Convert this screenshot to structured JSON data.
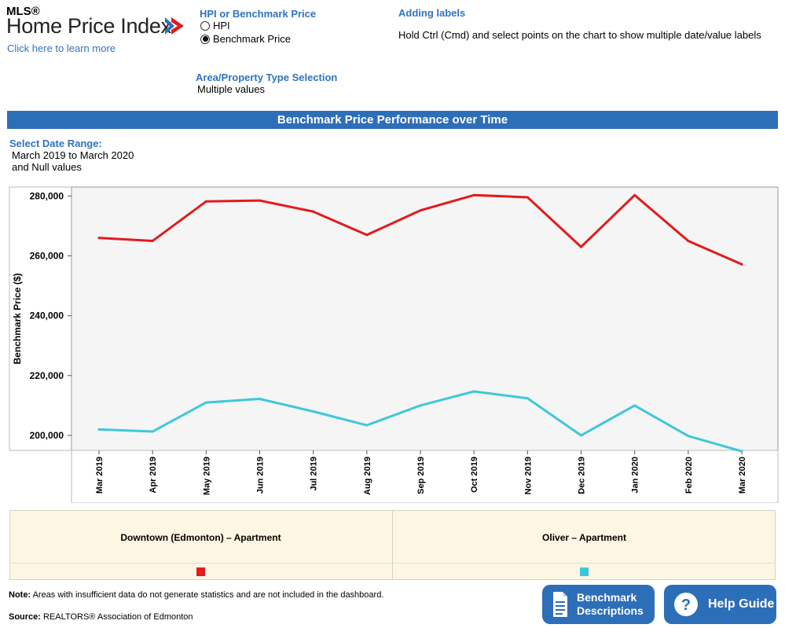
{
  "logo": {
    "mls": "MLS®",
    "name": "Home Price Index",
    "learn_more": "Click here to learn more"
  },
  "measure": {
    "label": "HPI or Benchmark Price",
    "options": [
      "HPI",
      "Benchmark Price"
    ],
    "selected": "Benchmark Price"
  },
  "labels_help": {
    "title": "Adding labels",
    "text": "Hold Ctrl (Cmd) and select points on the chart to show multiple date/value labels"
  },
  "area_selection": {
    "label": "Area/Property Type Selection",
    "value": "Multiple values"
  },
  "title_bar": "Benchmark Price Performance over Time",
  "date_range": {
    "label": "Select Date Range:",
    "line1": "March 2019 to March 2020",
    "line2": "and Null values"
  },
  "chart_data": {
    "type": "line",
    "x": [
      "Mar 2019",
      "Apr 2019",
      "May 2019",
      "Jun 2019",
      "Jul 2019",
      "Aug 2019",
      "Sep 2019",
      "Oct 2019",
      "Nov 2019",
      "Dec 2019",
      "Jan 2020",
      "Feb 2020",
      "Mar 2020"
    ],
    "ylabel": "Benchmark Price ($)",
    "yticks": [
      "200,000",
      "220,000",
      "240,000",
      "260,000",
      "280,000"
    ],
    "ylim": [
      195000,
      283000
    ],
    "grid": false,
    "series": [
      {
        "name": "Downtown (Edmonton) – Apartment",
        "color": "#e41a1c",
        "values": [
          266000,
          265000,
          278200,
          278500,
          274800,
          267000,
          275200,
          280300,
          279600,
          263000,
          280300,
          265000,
          257200
        ]
      },
      {
        "name": "Oliver – Apartment",
        "color": "#3dc8da",
        "values": [
          202000,
          201300,
          211000,
          212200,
          208000,
          203400,
          210000,
          214700,
          212400,
          200000,
          210000,
          199800,
          194700
        ]
      }
    ]
  },
  "legend": {
    "items": [
      {
        "label": "Downtown (Edmonton) – Apartment",
        "color": "#e41a1c"
      },
      {
        "label": "Oliver – Apartment",
        "color": "#3dc8da"
      }
    ]
  },
  "footer": {
    "note_label": "Note:",
    "note_text": "Areas with insufficient data do not generate statistics and are not included in the dashboard.",
    "source_label": "Source",
    "source_text": "REALTORS® Association of Edmonton"
  },
  "buttons": {
    "benchmark_line1": "Benchmark",
    "benchmark_line2": "Descriptions",
    "help": "Help Guide"
  }
}
